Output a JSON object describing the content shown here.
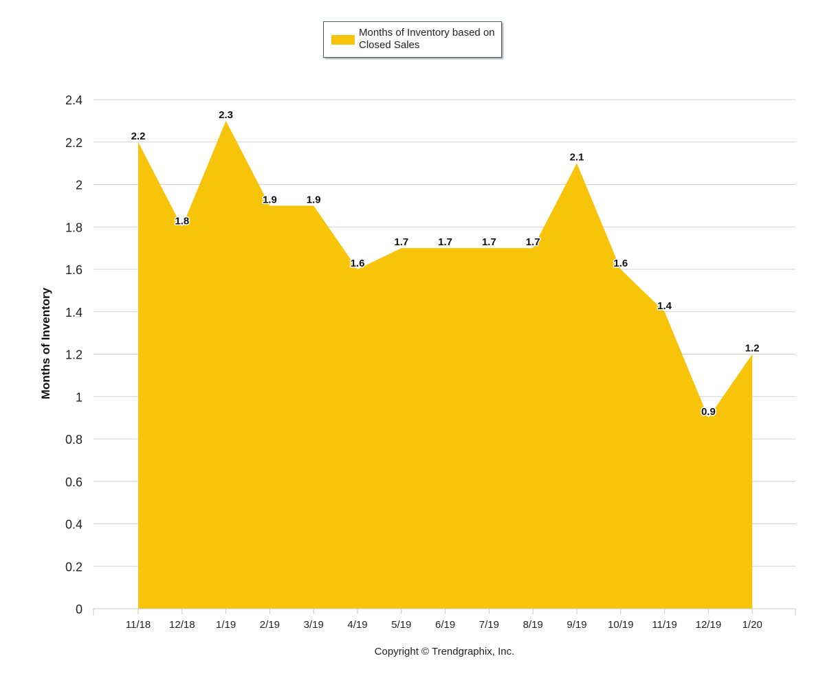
{
  "chart_data": {
    "type": "area",
    "categories": [
      "11/18",
      "12/18",
      "1/19",
      "2/19",
      "3/19",
      "4/19",
      "5/19",
      "6/19",
      "7/19",
      "8/19",
      "9/19",
      "10/19",
      "11/19",
      "12/19",
      "1/20"
    ],
    "series": [
      {
        "name": "Months of Inventory based on Closed Sales",
        "values": [
          2.2,
          1.8,
          2.3,
          1.9,
          1.9,
          1.6,
          1.7,
          1.7,
          1.7,
          1.7,
          2.1,
          1.6,
          1.4,
          0.9,
          1.2
        ],
        "color": "#f7c40a"
      }
    ],
    "ylabel": "Months of Inventory",
    "ylim": [
      0,
      2.4
    ],
    "yticks": [
      "0",
      "0.2",
      "0.4",
      "0.6",
      "0.8",
      "1",
      "1.2",
      "1.4",
      "1.6",
      "1.8",
      "2",
      "2.2",
      "2.4"
    ],
    "grid": true,
    "legend_position": "top-center",
    "data_labels": true
  },
  "legend": {
    "label": "Months of Inventory based on Closed Sales"
  },
  "footer": {
    "copyright": "Copyright © Trendgraphix, Inc."
  }
}
